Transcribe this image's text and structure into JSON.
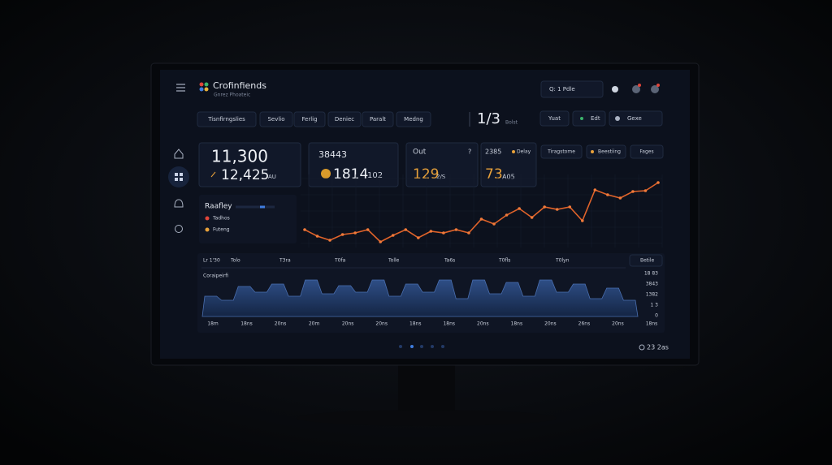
{
  "header": {
    "brand": "Crofinfiends",
    "subtitle": "Gnrez Phoateic",
    "search": "Q: 1 Pdle"
  },
  "tabs": [
    "Tisnfirngslies",
    "Sevlio",
    "Ferlig",
    "Deniec",
    "Paralt",
    "Medng"
  ],
  "pager": {
    "page": "1/3",
    "note": "Bolst"
  },
  "controls": [
    "Yuat",
    "Edt",
    "Gexe"
  ],
  "cards": [
    {
      "main": "11,300",
      "sub": "12,425",
      "unit": "AU"
    },
    {
      "label": "38443",
      "main": "1814",
      "sub": "102"
    },
    {
      "label": "Out",
      "help": "?",
      "main": "129",
      "sub": "2/S"
    },
    {
      "label": "2385",
      "tag": "Delay",
      "main": "73",
      "sub": "A05"
    }
  ],
  "filters": [
    "Tiragstome",
    "Beestiing",
    "Fages"
  ],
  "legend": {
    "title": "Raafley",
    "items": [
      "Tadhos",
      "Futeng"
    ]
  },
  "trend": {
    "values": [
      17,
      9,
      4,
      11,
      13,
      17,
      2,
      10,
      17,
      7,
      15,
      13,
      17,
      13,
      30,
      24,
      35,
      43,
      32,
      45,
      42,
      45,
      28,
      66,
      60,
      56,
      64,
      65,
      75
    ]
  },
  "area_panel": {
    "top_labels": [
      "Lr 1'30",
      "Tolo",
      "T3ra",
      "T0fa",
      "Tolle",
      "Ta6s",
      "T0fls",
      "T0lyn"
    ],
    "button": "Betile",
    "title": "Coraipeirfi",
    "values": [
      25,
      20,
      37,
      30,
      40,
      25,
      45,
      28,
      38,
      30,
      45,
      25,
      40,
      30,
      45,
      22,
      45,
      28,
      42,
      25,
      45,
      30,
      40,
      22,
      35,
      20
    ],
    "side_labels": [
      "18 83",
      "3843",
      "1382",
      "1 3",
      "0"
    ],
    "bottom_labels": [
      "18m",
      "18ns",
      "20ns",
      "20m",
      "20ns",
      "20ns",
      "18ns",
      "18ns",
      "20ns",
      "18ns",
      "20ns",
      "26ns",
      "20ns",
      "18ns"
    ]
  },
  "footer": "23 2as"
}
